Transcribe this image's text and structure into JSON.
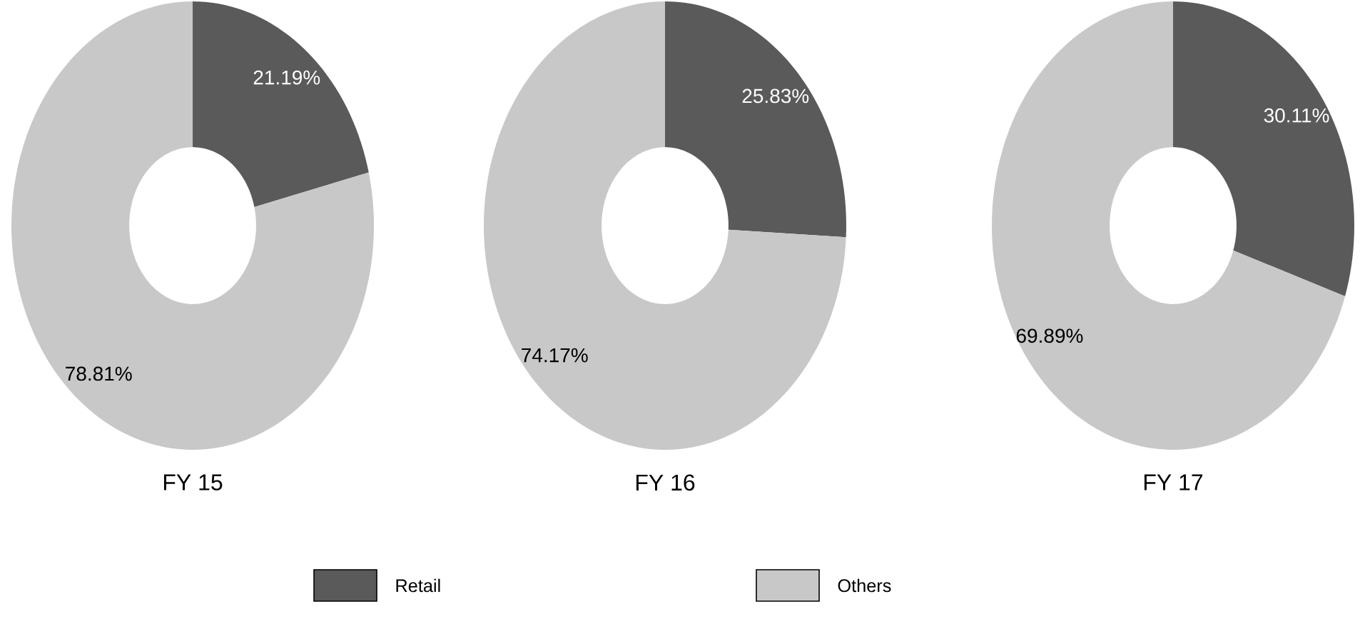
{
  "chart_data": [
    {
      "type": "donut",
      "title": "FY 15",
      "categories": [
        null,
        null
      ],
      "values": [
        21.19,
        78.81
      ],
      "colors": [
        "#5a5a5a",
        "#c8c8c8"
      ],
      "value_labels": [
        "21.19%",
        "78.81%"
      ]
    },
    {
      "type": "donut",
      "title": "FY 16",
      "categories": [
        "Retail",
        "Others"
      ],
      "values": [
        25.83,
        74.17
      ],
      "colors": [
        "#5a5a5a",
        "#c8c8c8"
      ],
      "value_labels": [
        "25.83%",
        "74.17%"
      ],
      "legend": "bottom"
    },
    {
      "type": "donut",
      "title": "FY 17",
      "categories": [
        null,
        null
      ],
      "values": [
        30.11,
        69.89
      ],
      "colors": [
        "#5a5a5a",
        "#c8c8c8"
      ],
      "value_labels": [
        "30.11%",
        "69.89%"
      ]
    }
  ]
}
